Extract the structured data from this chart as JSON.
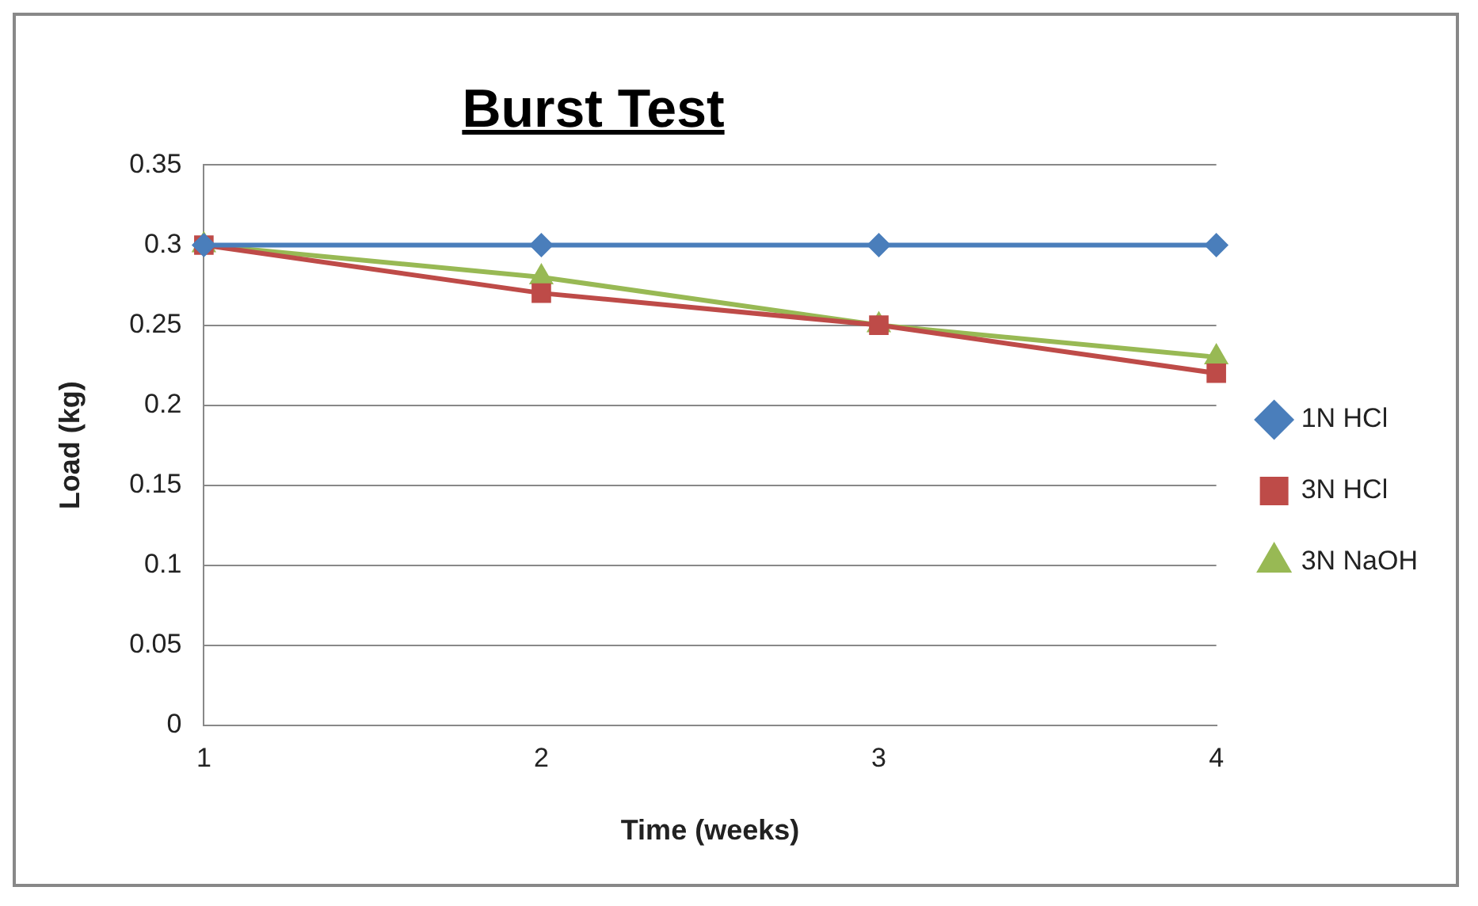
{
  "chart_data": {
    "type": "line",
    "title": "Burst Test",
    "xlabel": "Time (weeks)",
    "ylabel": "Load (kg)",
    "categories": [
      "1",
      "2",
      "3",
      "4"
    ],
    "series": [
      {
        "name": "1N HCl",
        "color": "#4a7ebb",
        "marker": "diamond",
        "values": [
          0.3,
          0.3,
          0.3,
          0.3
        ]
      },
      {
        "name": "3N HCl",
        "color": "#be4b48",
        "marker": "square",
        "values": [
          0.3,
          0.27,
          0.25,
          0.22
        ]
      },
      {
        "name": "3N NaOH",
        "color": "#98b954",
        "marker": "triangle",
        "values": [
          0.3,
          0.28,
          0.25,
          0.23
        ]
      }
    ],
    "ylim": [
      0,
      0.35
    ],
    "yticks": [
      0,
      0.05,
      0.1,
      0.15,
      0.2,
      0.25,
      0.3,
      0.35
    ],
    "grid": "y",
    "legend": "right"
  }
}
